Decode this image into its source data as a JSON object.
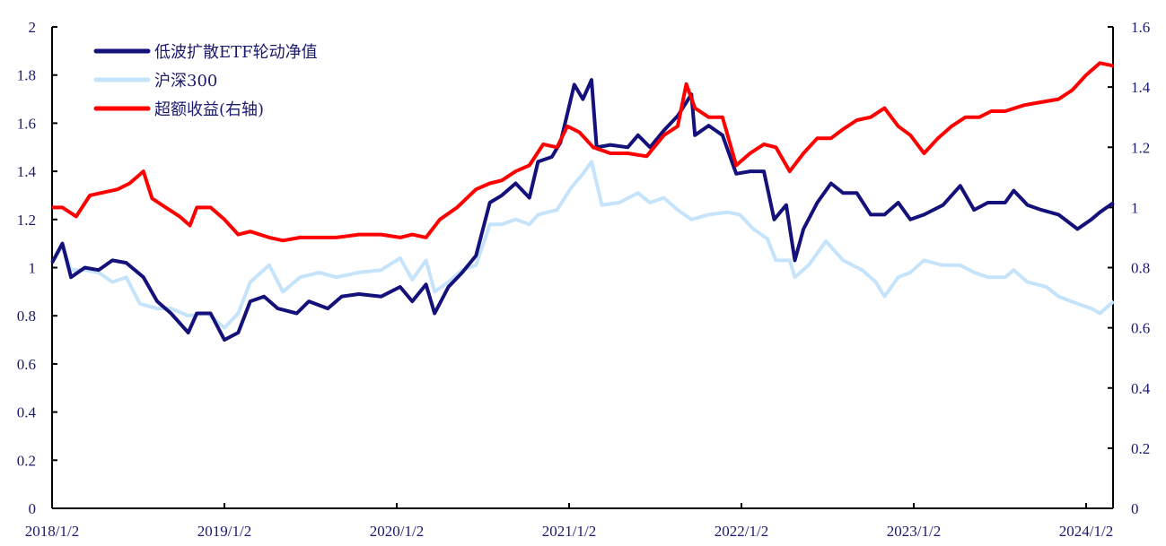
{
  "chart_data": {
    "type": "line",
    "title": "",
    "x_unit": "years since 2018/1/2",
    "x_range": [
      0,
      6.16
    ],
    "x_ticks": [
      "2018/1/2",
      "2019/1/2",
      "2020/1/2",
      "2021/1/2",
      "2022/1/2",
      "2023/1/2",
      "2024/1/2"
    ],
    "y_left": {
      "range": [
        0,
        2
      ],
      "ticks": [
        "0",
        "0.2",
        "0.4",
        "0.6",
        "0.8",
        "1",
        "1.2",
        "1.4",
        "1.6",
        "1.8",
        "2"
      ]
    },
    "y_right": {
      "range": [
        0,
        1.6
      ],
      "ticks": [
        "0",
        "0.2",
        "0.4",
        "0.6",
        "0.8",
        "1",
        "1.2",
        "1.4",
        "1.6"
      ]
    },
    "legend_position": "top-left",
    "grid": false,
    "series": [
      {
        "name": "沪深300",
        "axis": "left",
        "color": "#c5e3fa",
        "points": [
          [
            0,
            1.02
          ],
          [
            0.06,
            1.09
          ],
          [
            0.11,
            0.99
          ],
          [
            0.19,
            0.99
          ],
          [
            0.27,
            0.98
          ],
          [
            0.35,
            0.94
          ],
          [
            0.43,
            0.96
          ],
          [
            0.51,
            0.85
          ],
          [
            0.61,
            0.83
          ],
          [
            0.69,
            0.83
          ],
          [
            0.79,
            0.8
          ],
          [
            0.9,
            0.81
          ],
          [
            1.0,
            0.75
          ],
          [
            1.08,
            0.81
          ],
          [
            1.15,
            0.94
          ],
          [
            1.26,
            1.01
          ],
          [
            1.34,
            0.9
          ],
          [
            1.44,
            0.96
          ],
          [
            1.55,
            0.98
          ],
          [
            1.65,
            0.96
          ],
          [
            1.78,
            0.98
          ],
          [
            1.91,
            0.99
          ],
          [
            2.02,
            1.04
          ],
          [
            2.09,
            0.95
          ],
          [
            2.17,
            1.03
          ],
          [
            2.22,
            0.9
          ],
          [
            2.3,
            0.94
          ],
          [
            2.38,
            0.99
          ],
          [
            2.46,
            1.01
          ],
          [
            2.54,
            1.18
          ],
          [
            2.61,
            1.18
          ],
          [
            2.69,
            1.2
          ],
          [
            2.77,
            1.18
          ],
          [
            2.82,
            1.22
          ],
          [
            2.93,
            1.24
          ],
          [
            3.01,
            1.33
          ],
          [
            3.08,
            1.39
          ],
          [
            3.13,
            1.44
          ],
          [
            3.19,
            1.26
          ],
          [
            3.29,
            1.27
          ],
          [
            3.4,
            1.31
          ],
          [
            3.47,
            1.27
          ],
          [
            3.55,
            1.29
          ],
          [
            3.63,
            1.24
          ],
          [
            3.71,
            1.2
          ],
          [
            3.81,
            1.22
          ],
          [
            3.92,
            1.23
          ],
          [
            3.99,
            1.22
          ],
          [
            4.07,
            1.16
          ],
          [
            4.15,
            1.12
          ],
          [
            4.2,
            1.03
          ],
          [
            4.28,
            1.03
          ],
          [
            4.31,
            0.96
          ],
          [
            4.39,
            1.01
          ],
          [
            4.49,
            1.11
          ],
          [
            4.59,
            1.03
          ],
          [
            4.7,
            0.99
          ],
          [
            4.78,
            0.94
          ],
          [
            4.83,
            0.88
          ],
          [
            4.91,
            0.96
          ],
          [
            4.98,
            0.98
          ],
          [
            5.06,
            1.03
          ],
          [
            5.17,
            1.01
          ],
          [
            5.27,
            1.01
          ],
          [
            5.35,
            0.98
          ],
          [
            5.43,
            0.96
          ],
          [
            5.53,
            0.96
          ],
          [
            5.58,
            0.99
          ],
          [
            5.66,
            0.94
          ],
          [
            5.77,
            0.92
          ],
          [
            5.84,
            0.88
          ],
          [
            5.95,
            0.85
          ],
          [
            6.03,
            0.83
          ],
          [
            6.08,
            0.81
          ],
          [
            6.16,
            0.86
          ]
        ]
      },
      {
        "name": "低波扩散ETF轮动净值",
        "axis": "left",
        "color": "#14127a",
        "points": [
          [
            0,
            1.02
          ],
          [
            0.06,
            1.1
          ],
          [
            0.11,
            0.96
          ],
          [
            0.19,
            1.0
          ],
          [
            0.27,
            0.99
          ],
          [
            0.35,
            1.03
          ],
          [
            0.43,
            1.02
          ],
          [
            0.53,
            0.96
          ],
          [
            0.61,
            0.86
          ],
          [
            0.69,
            0.81
          ],
          [
            0.79,
            0.73
          ],
          [
            0.84,
            0.81
          ],
          [
            0.92,
            0.81
          ],
          [
            1.0,
            0.7
          ],
          [
            1.08,
            0.73
          ],
          [
            1.15,
            0.86
          ],
          [
            1.23,
            0.88
          ],
          [
            1.31,
            0.83
          ],
          [
            1.42,
            0.81
          ],
          [
            1.49,
            0.86
          ],
          [
            1.6,
            0.83
          ],
          [
            1.68,
            0.88
          ],
          [
            1.78,
            0.89
          ],
          [
            1.91,
            0.88
          ],
          [
            2.02,
            0.92
          ],
          [
            2.09,
            0.86
          ],
          [
            2.17,
            0.93
          ],
          [
            2.22,
            0.81
          ],
          [
            2.3,
            0.92
          ],
          [
            2.38,
            0.98
          ],
          [
            2.46,
            1.05
          ],
          [
            2.54,
            1.27
          ],
          [
            2.61,
            1.3
          ],
          [
            2.69,
            1.35
          ],
          [
            2.77,
            1.29
          ],
          [
            2.82,
            1.44
          ],
          [
            2.9,
            1.46
          ],
          [
            2.95,
            1.52
          ],
          [
            3.03,
            1.76
          ],
          [
            3.08,
            1.7
          ],
          [
            3.13,
            1.78
          ],
          [
            3.16,
            1.5
          ],
          [
            3.24,
            1.51
          ],
          [
            3.34,
            1.5
          ],
          [
            3.4,
            1.55
          ],
          [
            3.47,
            1.5
          ],
          [
            3.55,
            1.57
          ],
          [
            3.63,
            1.63
          ],
          [
            3.71,
            1.72
          ],
          [
            3.73,
            1.55
          ],
          [
            3.81,
            1.59
          ],
          [
            3.89,
            1.55
          ],
          [
            3.97,
            1.39
          ],
          [
            4.05,
            1.4
          ],
          [
            4.13,
            1.4
          ],
          [
            4.19,
            1.2
          ],
          [
            4.26,
            1.26
          ],
          [
            4.31,
            1.03
          ],
          [
            4.36,
            1.16
          ],
          [
            4.44,
            1.27
          ],
          [
            4.52,
            1.35
          ],
          [
            4.59,
            1.31
          ],
          [
            4.67,
            1.31
          ],
          [
            4.75,
            1.22
          ],
          [
            4.83,
            1.22
          ],
          [
            4.91,
            1.27
          ],
          [
            4.98,
            1.2
          ],
          [
            5.06,
            1.22
          ],
          [
            5.17,
            1.26
          ],
          [
            5.27,
            1.34
          ],
          [
            5.35,
            1.24
          ],
          [
            5.43,
            1.27
          ],
          [
            5.53,
            1.27
          ],
          [
            5.58,
            1.32
          ],
          [
            5.66,
            1.26
          ],
          [
            5.74,
            1.24
          ],
          [
            5.84,
            1.22
          ],
          [
            5.95,
            1.16
          ],
          [
            6.03,
            1.2
          ],
          [
            6.08,
            1.23
          ],
          [
            6.16,
            1.27
          ]
        ]
      },
      {
        "name": "超额收益(右轴)",
        "axis": "right",
        "color": "#ff0000",
        "points": [
          [
            0,
            1.0
          ],
          [
            0.06,
            1.0
          ],
          [
            0.14,
            0.97
          ],
          [
            0.22,
            1.04
          ],
          [
            0.3,
            1.05
          ],
          [
            0.38,
            1.06
          ],
          [
            0.45,
            1.08
          ],
          [
            0.53,
            1.12
          ],
          [
            0.58,
            1.03
          ],
          [
            0.66,
            1.0
          ],
          [
            0.74,
            0.97
          ],
          [
            0.8,
            0.94
          ],
          [
            0.84,
            1.0
          ],
          [
            0.92,
            1.0
          ],
          [
            1.0,
            0.96
          ],
          [
            1.08,
            0.91
          ],
          [
            1.15,
            0.92
          ],
          [
            1.26,
            0.9
          ],
          [
            1.34,
            0.89
          ],
          [
            1.44,
            0.9
          ],
          [
            1.55,
            0.9
          ],
          [
            1.65,
            0.9
          ],
          [
            1.78,
            0.91
          ],
          [
            1.91,
            0.91
          ],
          [
            2.02,
            0.9
          ],
          [
            2.09,
            0.91
          ],
          [
            2.17,
            0.9
          ],
          [
            2.25,
            0.96
          ],
          [
            2.35,
            1.0
          ],
          [
            2.46,
            1.06
          ],
          [
            2.54,
            1.08
          ],
          [
            2.61,
            1.09
          ],
          [
            2.69,
            1.12
          ],
          [
            2.77,
            1.14
          ],
          [
            2.85,
            1.21
          ],
          [
            2.93,
            1.2
          ],
          [
            2.99,
            1.27
          ],
          [
            3.06,
            1.25
          ],
          [
            3.14,
            1.2
          ],
          [
            3.24,
            1.18
          ],
          [
            3.34,
            1.18
          ],
          [
            3.45,
            1.17
          ],
          [
            3.55,
            1.24
          ],
          [
            3.63,
            1.27
          ],
          [
            3.68,
            1.41
          ],
          [
            3.73,
            1.33
          ],
          [
            3.81,
            1.3
          ],
          [
            3.89,
            1.3
          ],
          [
            3.97,
            1.14
          ],
          [
            4.05,
            1.18
          ],
          [
            4.13,
            1.21
          ],
          [
            4.2,
            1.2
          ],
          [
            4.28,
            1.12
          ],
          [
            4.36,
            1.18
          ],
          [
            4.44,
            1.23
          ],
          [
            4.52,
            1.23
          ],
          [
            4.59,
            1.26
          ],
          [
            4.67,
            1.29
          ],
          [
            4.75,
            1.3
          ],
          [
            4.83,
            1.33
          ],
          [
            4.91,
            1.27
          ],
          [
            4.98,
            1.24
          ],
          [
            5.06,
            1.18
          ],
          [
            5.14,
            1.23
          ],
          [
            5.22,
            1.27
          ],
          [
            5.3,
            1.3
          ],
          [
            5.38,
            1.3
          ],
          [
            5.45,
            1.32
          ],
          [
            5.53,
            1.32
          ],
          [
            5.64,
            1.34
          ],
          [
            5.74,
            1.35
          ],
          [
            5.84,
            1.36
          ],
          [
            5.92,
            1.39
          ],
          [
            6.0,
            1.44
          ],
          [
            6.08,
            1.48
          ],
          [
            6.16,
            1.47
          ]
        ]
      }
    ]
  }
}
